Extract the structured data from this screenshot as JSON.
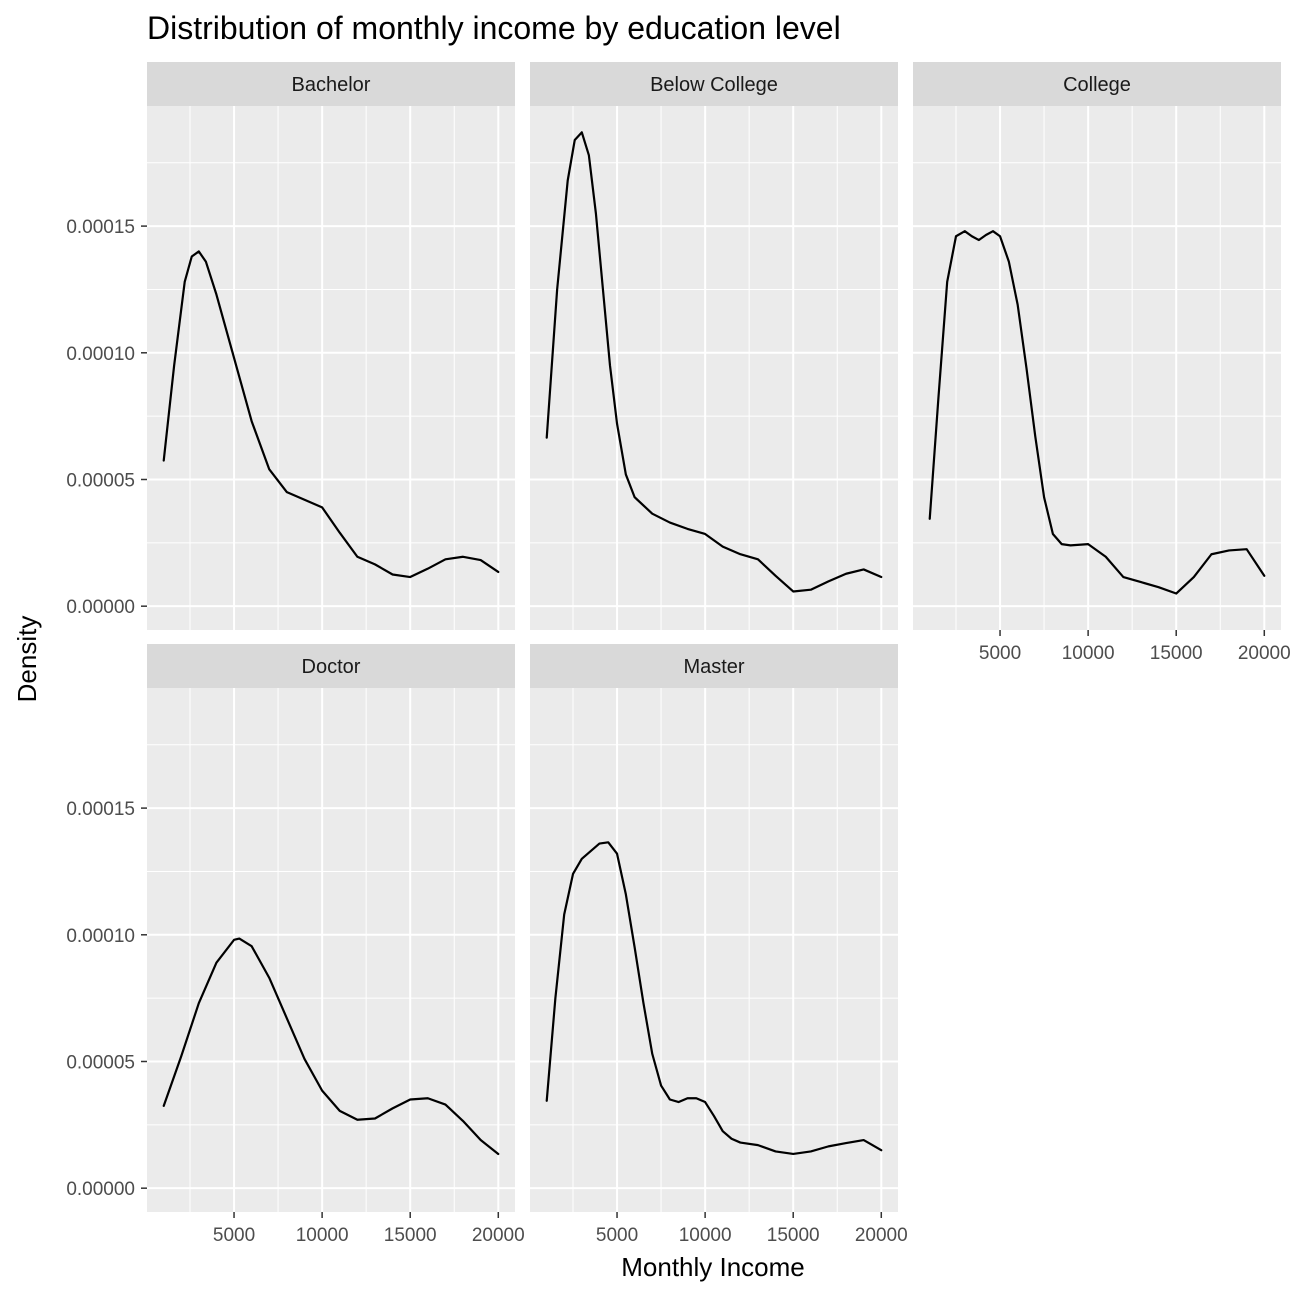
{
  "chart_data": {
    "type": "line",
    "title": "Distribution of monthly income by education level",
    "xlabel": "Monthly Income",
    "ylabel": "Density",
    "xlim": [
      1009,
      19999
    ],
    "ylim": [
      0,
      0.000188
    ],
    "x_ticks": [
      5000,
      10000,
      15000,
      20000
    ],
    "x_tick_labels": [
      "5000",
      "10000",
      "15000",
      "20000"
    ],
    "y_ticks": [
      0,
      5e-05,
      0.0001,
      0.00015
    ],
    "y_tick_labels": [
      "0.00000",
      "0.00005",
      "0.00010",
      "0.00015"
    ],
    "grid": true,
    "facets": [
      {
        "name": "Bachelor",
        "x": [
          1009,
          1600,
          2200,
          2600,
          3000,
          3400,
          4000,
          4600,
          5200,
          6000,
          7000,
          8000,
          9000,
          10000,
          11000,
          12000,
          13000,
          14000,
          15000,
          16000,
          17000,
          18000,
          19000,
          19999
        ],
        "y": [
          5.75e-05,
          9.5e-05,
          0.000128,
          0.000138,
          0.00014,
          0.000136,
          0.000123,
          0.000108,
          9.3e-05,
          7.3e-05,
          5.4e-05,
          4.5e-05,
          4.2e-05,
          3.9e-05,
          2.9e-05,
          1.95e-05,
          1.65e-05,
          1.25e-05,
          1.15e-05,
          1.48e-05,
          1.85e-05,
          1.95e-05,
          1.82e-05,
          1.35e-05
        ]
      },
      {
        "name": "Below College",
        "x": [
          1009,
          1600,
          2200,
          2600,
          3000,
          3400,
          3800,
          4200,
          4600,
          5000,
          5500,
          6000,
          7000,
          8000,
          9000,
          10000,
          11000,
          12000,
          13000,
          14000,
          15000,
          16000,
          17000,
          18000,
          19000,
          19999
        ],
        "y": [
          6.65e-05,
          0.000125,
          0.000168,
          0.000184,
          0.000187,
          0.000178,
          0.000155,
          0.000125,
          9.5e-05,
          7.2e-05,
          5.2e-05,
          4.3e-05,
          3.65e-05,
          3.3e-05,
          3.05e-05,
          2.85e-05,
          2.35e-05,
          2.05e-05,
          1.85e-05,
          1.2e-05,
          5.8e-06,
          6.5e-06,
          9.8e-06,
          1.28e-05,
          1.45e-05,
          1.15e-05
        ]
      },
      {
        "name": "College",
        "x": [
          1009,
          1500,
          2000,
          2500,
          3000,
          3400,
          3800,
          4200,
          4600,
          5000,
          5500,
          6000,
          6500,
          7000,
          7500,
          8000,
          8500,
          9000,
          10000,
          11000,
          12000,
          13000,
          14000,
          15000,
          16000,
          17000,
          18000,
          19000,
          19999
        ],
        "y": [
          3.45e-05,
          8.2e-05,
          0.000128,
          0.000146,
          0.000148,
          0.000146,
          0.0001445,
          0.0001465,
          0.000148,
          0.000146,
          0.000136,
          0.000119,
          9.4e-05,
          6.7e-05,
          4.3e-05,
          2.85e-05,
          2.45e-05,
          2.4e-05,
          2.45e-05,
          1.95e-05,
          1.15e-05,
          9.5e-06,
          7.5e-06,
          5e-06,
          1.15e-05,
          2.05e-05,
          2.2e-05,
          2.25e-05,
          1.2e-05
        ]
      },
      {
        "name": "Doctor",
        "x": [
          1009,
          2000,
          3000,
          4000,
          5000,
          5300,
          6000,
          7000,
          8000,
          9000,
          10000,
          11000,
          12000,
          13000,
          14000,
          15000,
          16000,
          17000,
          18000,
          19000,
          19999
        ],
        "y": [
          3.25e-05,
          5.2e-05,
          7.3e-05,
          8.9e-05,
          9.8e-05,
          9.85e-05,
          9.55e-05,
          8.3e-05,
          6.7e-05,
          5.1e-05,
          3.85e-05,
          3.05e-05,
          2.7e-05,
          2.75e-05,
          3.15e-05,
          3.5e-05,
          3.55e-05,
          3.3e-05,
          2.65e-05,
          1.9e-05,
          1.35e-05
        ]
      },
      {
        "name": "Master",
        "x": [
          1009,
          1500,
          2000,
          2500,
          3000,
          3500,
          4000,
          4500,
          5000,
          5500,
          6000,
          6500,
          7000,
          7500,
          8000,
          8500,
          9000,
          9500,
          10000,
          10500,
          11000,
          11500,
          12000,
          13000,
          14000,
          15000,
          16000,
          17000,
          18000,
          19000,
          19999
        ],
        "y": [
          3.45e-05,
          7.5e-05,
          0.000108,
          0.000124,
          0.00013,
          0.000133,
          0.000136,
          0.0001365,
          0.000132,
          0.000116,
          9.5e-05,
          7.3e-05,
          5.3e-05,
          4.05e-05,
          3.5e-05,
          3.4e-05,
          3.55e-05,
          3.55e-05,
          3.4e-05,
          2.85e-05,
          2.25e-05,
          1.95e-05,
          1.8e-05,
          1.7e-05,
          1.45e-05,
          1.35e-05,
          1.45e-05,
          1.65e-05,
          1.78e-05,
          1.9e-05,
          1.5e-05
        ]
      }
    ]
  }
}
